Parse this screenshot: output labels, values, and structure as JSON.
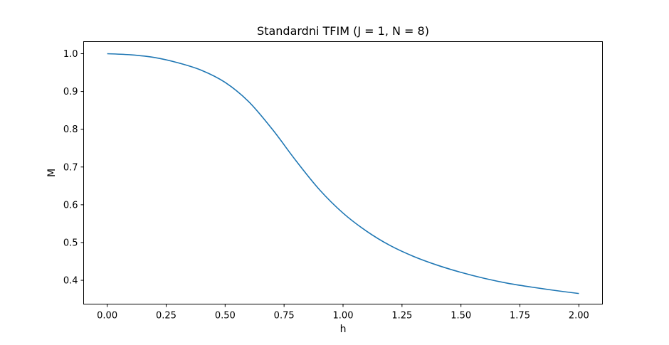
{
  "chart_data": {
    "type": "line",
    "title": "Standardni TFIM (J = 1, N = 8)",
    "xlabel": "h",
    "ylabel": "M",
    "xlim": [
      -0.1,
      2.1
    ],
    "ylim": [
      0.337,
      1.032
    ],
    "xticks": [
      0.0,
      0.25,
      0.5,
      0.75,
      1.0,
      1.25,
      1.5,
      1.75,
      2.0
    ],
    "xtick_labels": [
      "0.00",
      "0.25",
      "0.50",
      "0.75",
      "1.00",
      "1.25",
      "1.50",
      "1.75",
      "2.00"
    ],
    "yticks": [
      0.4,
      0.5,
      0.6,
      0.7,
      0.8,
      0.9,
      1.0
    ],
    "ytick_labels": [
      "0.4",
      "0.5",
      "0.6",
      "0.7",
      "0.8",
      "0.9",
      "1.0"
    ],
    "grid": false,
    "series": [
      {
        "color": "#1f77b4",
        "x": [
          0.0,
          0.1,
          0.2,
          0.3,
          0.4,
          0.5,
          0.6,
          0.7,
          0.8,
          0.9,
          1.0,
          1.1,
          1.2,
          1.3,
          1.4,
          1.5,
          1.6,
          1.7,
          1.8,
          1.9,
          2.0
        ],
        "y": [
          1.0,
          0.997,
          0.99,
          0.976,
          0.956,
          0.924,
          0.873,
          0.8,
          0.717,
          0.64,
          0.578,
          0.53,
          0.492,
          0.463,
          0.44,
          0.421,
          0.405,
          0.392,
          0.382,
          0.373,
          0.365
        ]
      }
    ]
  }
}
